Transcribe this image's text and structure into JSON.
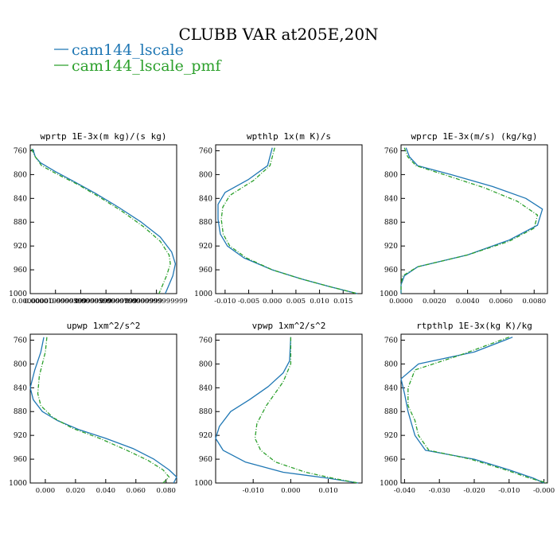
{
  "title": "CLUBB VAR at205E,20N",
  "legend": [
    {
      "label": "cam144_lscale",
      "color": "#1f77b4"
    },
    {
      "label": "cam144_lscale_pmf",
      "color": "#2ca02c"
    }
  ],
  "chart_data": [
    {
      "type": "line",
      "title": "wprtp  1E-3x(m kg)/(s kg)",
      "ylim": [
        1000,
        750
      ],
      "yticks": [
        760,
        800,
        840,
        880,
        920,
        960,
        1000
      ],
      "xlim": [
        0.0,
        0.000116
      ],
      "xtick_labels": [
        "0.0000000",
        "0.0000199999999",
        "0.0000399999999",
        "0.0000599999999",
        "0.0000799999999",
        "0.0000999999999"
      ],
      "xtick_values": [
        0.0,
        2e-05,
        4e-05,
        6e-05,
        8e-05,
        0.0001
      ],
      "series": [
        {
          "name": "cam144_lscale",
          "color": "#1f77b4",
          "points": [
            [
              2e-06,
              757
            ],
            [
              4e-06,
              770
            ],
            [
              8e-06,
              780
            ],
            [
              2e-05,
              795
            ],
            [
              3.5e-05,
              812
            ],
            [
              5.2e-05,
              832
            ],
            [
              7e-05,
              855
            ],
            [
              8.8e-05,
              880
            ],
            [
              0.000103,
              905
            ],
            [
              0.000112,
              930
            ],
            [
              0.000115,
              950
            ],
            [
              0.000113,
              970
            ],
            [
              0.000109,
              990
            ],
            [
              0.000107,
              1000
            ]
          ]
        },
        {
          "name": "cam144_lscale_pmf",
          "color": "#2ca02c",
          "points": [
            [
              1e-06,
              757
            ],
            [
              4e-06,
              770
            ],
            [
              9e-06,
              785
            ],
            [
              2.2e-05,
              800
            ],
            [
              3.8e-05,
              817
            ],
            [
              5.5e-05,
              838
            ],
            [
              7.3e-05,
              862
            ],
            [
              9e-05,
              888
            ],
            [
              0.000103,
              912
            ],
            [
              0.00011,
              935
            ],
            [
              0.000111,
              950
            ],
            [
              0.000108,
              970
            ],
            [
              0.000104,
              990
            ],
            [
              0.000102,
              1000
            ]
          ]
        }
      ]
    },
    {
      "type": "line",
      "title": "wpthlp  1x(m K)/s",
      "ylim": [
        1000,
        750
      ],
      "yticks": [
        760,
        800,
        840,
        880,
        920,
        960,
        1000
      ],
      "xlim": [
        -0.012,
        0.019
      ],
      "xtick_labels": [
        "-0.010",
        "-0.005",
        "0.000",
        "0.005",
        "0.010",
        "0.015"
      ],
      "xtick_values": [
        -0.01,
        -0.005,
        0.0,
        0.005,
        0.01,
        0.015
      ],
      "series": [
        {
          "name": "cam144_lscale",
          "color": "#1f77b4",
          "points": [
            [
              0.0,
              755
            ],
            [
              -0.001,
              785
            ],
            [
              -0.005,
              808
            ],
            [
              -0.01,
              830
            ],
            [
              -0.0115,
              850
            ],
            [
              -0.0115,
              875
            ],
            [
              -0.011,
              900
            ],
            [
              -0.0095,
              920
            ],
            [
              -0.006,
              940
            ],
            [
              0.0,
              960
            ],
            [
              0.006,
              975
            ],
            [
              0.012,
              988
            ],
            [
              0.018,
              1000
            ]
          ]
        },
        {
          "name": "cam144_lscale_pmf",
          "color": "#2ca02c",
          "points": [
            [
              0.0005,
              755
            ],
            [
              -0.0005,
              785
            ],
            [
              -0.004,
              810
            ],
            [
              -0.009,
              835
            ],
            [
              -0.0105,
              855
            ],
            [
              -0.0108,
              875
            ],
            [
              -0.0104,
              900
            ],
            [
              -0.009,
              920
            ],
            [
              -0.0055,
              940
            ],
            [
              0.0,
              960
            ],
            [
              0.006,
              975
            ],
            [
              0.012,
              988
            ],
            [
              0.018,
              1000
            ]
          ]
        }
      ]
    },
    {
      "type": "line",
      "title": "wprcp  1E-3x(m/s) (kg/kg)",
      "ylim": [
        1000,
        750
      ],
      "yticks": [
        760,
        800,
        840,
        880,
        920,
        960,
        1000
      ],
      "xlim": [
        0.0,
        0.0088
      ],
      "xtick_labels": [
        "0.0000",
        "0.0020",
        "0.0040",
        "0.0060",
        "0.0080"
      ],
      "xtick_values": [
        0.0,
        0.002,
        0.004,
        0.006,
        0.008
      ],
      "series": [
        {
          "name": "cam144_lscale",
          "color": "#1f77b4",
          "points": [
            [
              0.0003,
              755
            ],
            [
              0.0005,
              770
            ],
            [
              0.001,
              785
            ],
            [
              0.003,
              800
            ],
            [
              0.0055,
              820
            ],
            [
              0.0075,
              840
            ],
            [
              0.0085,
              858
            ],
            [
              0.0082,
              885
            ],
            [
              0.0065,
              910
            ],
            [
              0.004,
              935
            ],
            [
              0.001,
              955
            ],
            [
              0.0002,
              970
            ],
            [
              0.0,
              985
            ],
            [
              0.0,
              1000
            ]
          ]
        },
        {
          "name": "cam144_lscale_pmf",
          "color": "#2ca02c",
          "points": [
            [
              0.0002,
              755
            ],
            [
              0.0004,
              770
            ],
            [
              0.0009,
              785
            ],
            [
              0.0028,
              802
            ],
            [
              0.005,
              822
            ],
            [
              0.007,
              845
            ],
            [
              0.0082,
              868
            ],
            [
              0.008,
              890
            ],
            [
              0.0065,
              912
            ],
            [
              0.004,
              935
            ],
            [
              0.001,
              955
            ],
            [
              0.0001,
              970
            ],
            [
              0.0,
              985
            ],
            [
              0.0,
              1000
            ]
          ]
        }
      ]
    },
    {
      "type": "line",
      "title": "upwp  1xm^2/s^2",
      "ylim": [
        1000,
        750
      ],
      "yticks": [
        760,
        800,
        840,
        880,
        920,
        960,
        1000
      ],
      "xlim": [
        -0.01,
        0.087
      ],
      "xtick_labels": [
        "0.000",
        "0.020",
        "0.040",
        "0.060",
        "0.080"
      ],
      "xtick_values": [
        0.0,
        0.02,
        0.04,
        0.06,
        0.08
      ],
      "series": [
        {
          "name": "cam144_lscale",
          "color": "#1f77b4",
          "points": [
            [
              -0.001,
              755
            ],
            [
              -0.003,
              780
            ],
            [
              -0.007,
              810
            ],
            [
              -0.01,
              840
            ],
            [
              -0.008,
              860
            ],
            [
              -0.002,
              880
            ],
            [
              0.008,
              895
            ],
            [
              0.022,
              910
            ],
            [
              0.04,
              925
            ],
            [
              0.058,
              942
            ],
            [
              0.072,
              960
            ],
            [
              0.082,
              978
            ],
            [
              0.087,
              990
            ],
            [
              0.085,
              1000
            ]
          ]
        },
        {
          "name": "cam144_lscale_pmf",
          "color": "#2ca02c",
          "points": [
            [
              0.001,
              755
            ],
            [
              0.0,
              780
            ],
            [
              -0.004,
              820
            ],
            [
              -0.005,
              850
            ],
            [
              -0.003,
              870
            ],
            [
              0.005,
              890
            ],
            [
              0.018,
              908
            ],
            [
              0.036,
              925
            ],
            [
              0.054,
              945
            ],
            [
              0.068,
              962
            ],
            [
              0.078,
              978
            ],
            [
              0.082,
              990
            ],
            [
              0.078,
              1000
            ]
          ]
        }
      ]
    },
    {
      "type": "line",
      "title": "vpwp  1xm^2/s^2",
      "ylim": [
        1000,
        750
      ],
      "yticks": [
        760,
        800,
        840,
        880,
        920,
        960,
        1000
      ],
      "xlim": [
        -0.02,
        0.019
      ],
      "xtick_labels": [
        "-0.010",
        "0.000",
        "0.010"
      ],
      "xtick_values": [
        -0.01,
        0.0,
        0.01
      ],
      "series": [
        {
          "name": "cam144_lscale",
          "color": "#1f77b4",
          "points": [
            [
              0.0,
              755
            ],
            [
              -0.0003,
              795
            ],
            [
              -0.002,
              815
            ],
            [
              -0.006,
              838
            ],
            [
              -0.011,
              860
            ],
            [
              -0.016,
              880
            ],
            [
              -0.019,
              905
            ],
            [
              -0.02,
              925
            ],
            [
              -0.018,
              945
            ],
            [
              -0.012,
              965
            ],
            [
              -0.002,
              982
            ],
            [
              0.01,
              992
            ],
            [
              0.018,
              1000
            ]
          ]
        },
        {
          "name": "cam144_lscale_pmf",
          "color": "#2ca02c",
          "points": [
            [
              0.0,
              755
            ],
            [
              0.0,
              800
            ],
            [
              -0.002,
              830
            ],
            [
              -0.0065,
              870
            ],
            [
              -0.009,
              900
            ],
            [
              -0.0095,
              925
            ],
            [
              -0.008,
              945
            ],
            [
              -0.004,
              965
            ],
            [
              0.004,
              982
            ],
            [
              0.012,
              993
            ],
            [
              0.018,
              1000
            ]
          ]
        }
      ]
    },
    {
      "type": "line",
      "title": "rtpthlp  1E-3x(kg K)/kg",
      "ylim": [
        1000,
        750
      ],
      "yticks": [
        760,
        800,
        840,
        880,
        920,
        960,
        1000
      ],
      "xlim": [
        -0.041,
        0.001
      ],
      "xtick_labels": [
        "-0.040",
        "-0.030",
        "-0.020",
        "-0.010",
        "-0.000"
      ],
      "xtick_values": [
        -0.04,
        -0.03,
        -0.02,
        -0.01,
        0.0
      ],
      "series": [
        {
          "name": "cam144_lscale",
          "color": "#1f77b4",
          "points": [
            [
              -0.009,
              755
            ],
            [
              -0.02,
              780
            ],
            [
              -0.036,
              800
            ],
            [
              -0.041,
              825
            ],
            [
              -0.04,
              850
            ],
            [
              -0.039,
              880
            ],
            [
              -0.038,
              900
            ],
            [
              -0.037,
              920
            ],
            [
              -0.034,
              945
            ],
            [
              -0.02,
              960
            ],
            [
              -0.01,
              978
            ],
            [
              -0.003,
              992
            ],
            [
              0.0,
              1000
            ]
          ]
        },
        {
          "name": "cam144_lscale_pmf",
          "color": "#2ca02c",
          "points": [
            [
              -0.01,
              755
            ],
            [
              -0.024,
              785
            ],
            [
              -0.037,
              810
            ],
            [
              -0.039,
              840
            ],
            [
              -0.039,
              870
            ],
            [
              -0.037,
              895
            ],
            [
              -0.036,
              920
            ],
            [
              -0.033,
              945
            ],
            [
              -0.021,
              960
            ],
            [
              -0.011,
              978
            ],
            [
              -0.004,
              992
            ],
            [
              0.001,
              1000
            ]
          ]
        }
      ]
    }
  ]
}
